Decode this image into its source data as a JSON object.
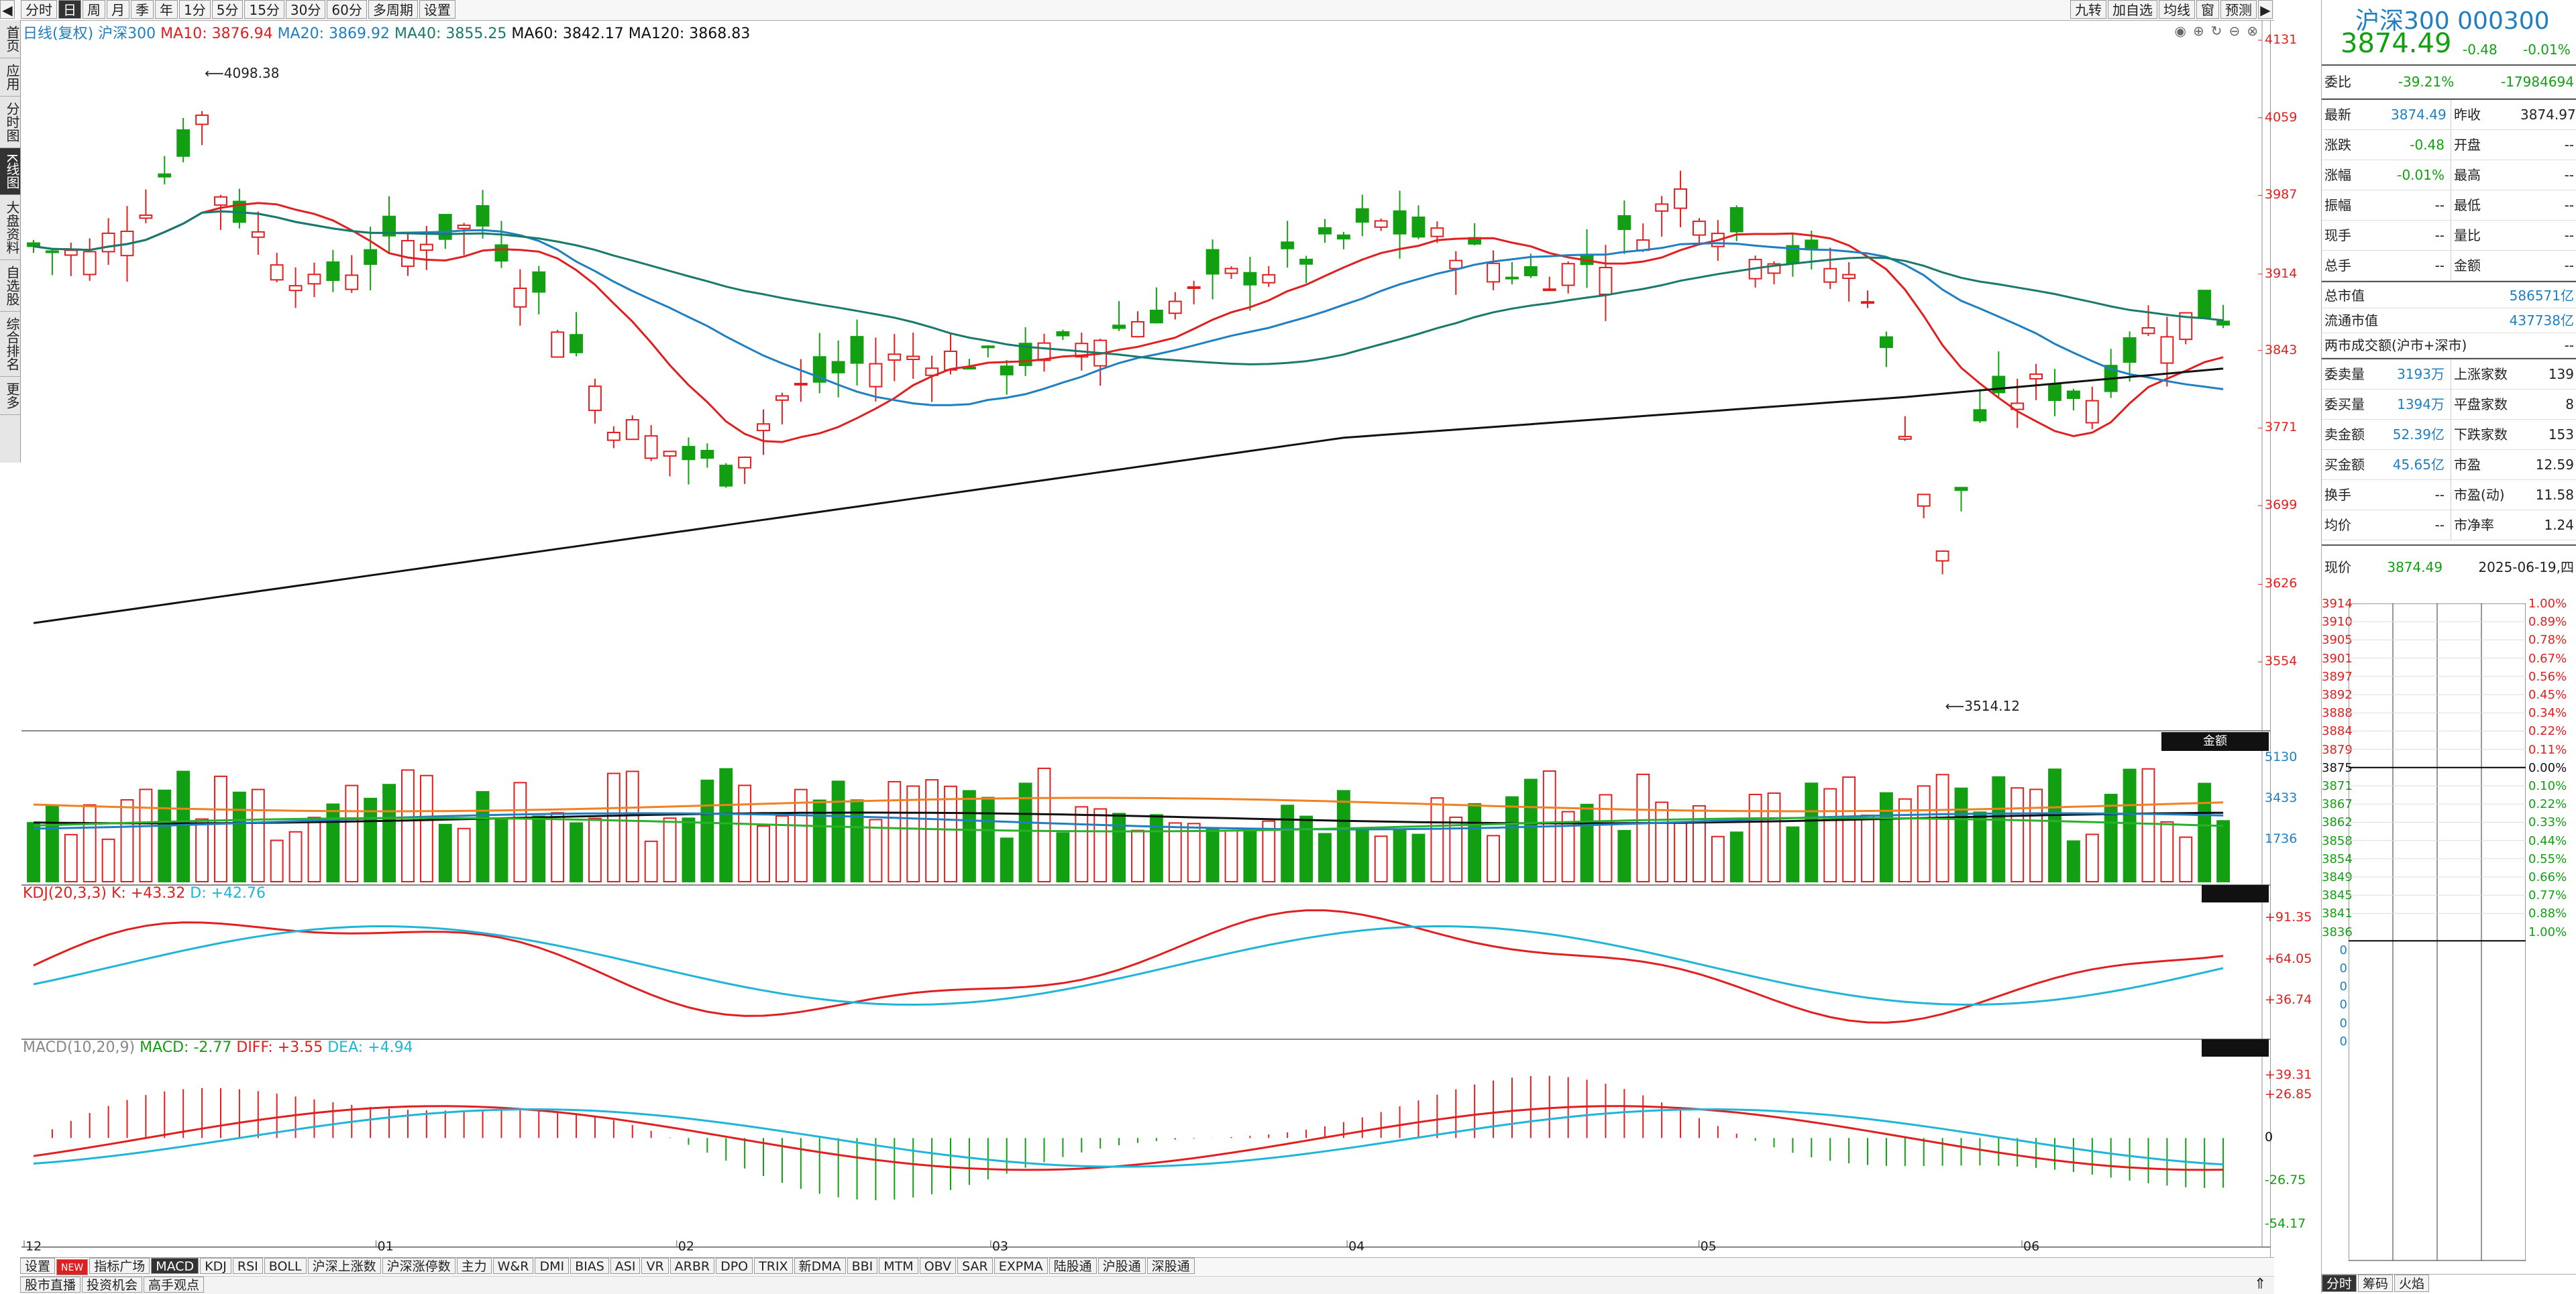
{
  "toolbar": {
    "items": [
      "分时",
      "日",
      "周",
      "月",
      "季",
      "年",
      "1分",
      "5分",
      "15分",
      "30分",
      "60分",
      "多周期",
      "设置"
    ],
    "active": "日",
    "right_items": [
      "九转",
      "加自选",
      "均线",
      "窗",
      "预测"
    ]
  },
  "left_sidebar": [
    "首页",
    "应用",
    "分时图",
    "K线图",
    "大盘资料",
    "自选股",
    "综合排名",
    "更多"
  ],
  "left_sidebar_active": "K线图",
  "ma_legend": {
    "label": "日线(复权)",
    "name": "沪深300",
    "ma10": "MA10: 3876.94",
    "ma20": "MA20: 3869.92",
    "ma40": "MA40: 3855.25",
    "ma60": "MA60: 3842.17",
    "ma120": "MA120: 3868.83"
  },
  "price_axis": [
    "4131",
    "4059",
    "3987",
    "3914",
    "3843",
    "3771",
    "3699",
    "3626",
    "3554"
  ],
  "annotations": {
    "high": "4098.38",
    "low": "3514.12"
  },
  "volume_panel": {
    "label": "金额",
    "axis": [
      "5130",
      "3433",
      "1736"
    ]
  },
  "kdj": {
    "title": "KDJ(20,3,3)",
    "k": "K: +43.32",
    "d": "D: +42.76",
    "axis": [
      "+91.35",
      "+64.05",
      "+36.74"
    ]
  },
  "macd": {
    "title": "MACD(10,20,9)",
    "macd": "MACD: -2.77",
    "diff": "DIFF: +3.55",
    "dea": "DEA: +4.94",
    "axis": [
      "+39.31",
      "+26.85",
      "0",
      "-26.75",
      "-54.17"
    ]
  },
  "x_axis": [
    "12",
    "01",
    "02",
    "03",
    "04",
    "05",
    "06"
  ],
  "indicator_tabs": [
    "设置",
    "NEW",
    "指标广场",
    "MACD",
    "KDJ",
    "RSI",
    "BOLL",
    "沪深上涨数",
    "沪深涨停数",
    "主力",
    "W&R",
    "DMI",
    "BIAS",
    "ASI",
    "VR",
    "ARBR",
    "DPO",
    "TRIX",
    "新DMA",
    "BBI",
    "MTM",
    "OBV",
    "SAR",
    "EXPMA",
    "陆股通",
    "沪股通",
    "深股通"
  ],
  "indicator_tab_active": "MACD",
  "bottom_tabs": [
    "股市直播",
    "投资机会",
    "高手观点"
  ],
  "right_panel": {
    "name": "沪深300 000300",
    "price": "3874.49",
    "change": "-0.48",
    "change_pct": "-0.01%",
    "wb_label": "委比",
    "wb_pct": "-39.21%",
    "wb_val": "-17984694",
    "rows": [
      [
        "最新",
        "3874.49",
        "昨收",
        "3874.97"
      ],
      [
        "涨跌",
        "-0.48",
        "开盘",
        "--"
      ],
      [
        "涨幅",
        "-0.01%",
        "最高",
        "--"
      ],
      [
        "振幅",
        "--",
        "最低",
        "--"
      ],
      [
        "现手",
        "--",
        "量比",
        "--"
      ],
      [
        "总手",
        "--",
        "金额",
        "--"
      ]
    ],
    "total_mv_label": "总市值",
    "total_mv": "586571亿",
    "float_mv_label": "流通市值",
    "float_mv": "437738亿",
    "market_label": "两市成交额(沪市+深市)",
    "market_val": "--",
    "rows2": [
      [
        "委卖量",
        "3193万",
        "上涨家数",
        "139"
      ],
      [
        "委买量",
        "1394万",
        "平盘家数",
        "8"
      ],
      [
        "卖金额",
        "52.39亿",
        "下跌家数",
        "153"
      ],
      [
        "买金额",
        "45.65亿",
        "市盈",
        "12.59"
      ],
      [
        "换手",
        "--",
        "市盈(动)",
        "11.58"
      ],
      [
        "均价",
        "--",
        "市净率",
        "1.24"
      ]
    ],
    "now_label": "现价",
    "now_price": "3874.49",
    "date": "2025-06-19,四",
    "mini_left": [
      "3914",
      "3910",
      "3905",
      "3901",
      "3897",
      "3892",
      "3888",
      "3884",
      "3879",
      "3875",
      "3871",
      "3867",
      "3862",
      "3858",
      "3854",
      "3849",
      "3845",
      "3841",
      "3836",
      "0",
      "0",
      "0",
      "0",
      "0",
      "0"
    ],
    "mini_right": [
      "1.00%",
      "0.89%",
      "0.78%",
      "0.67%",
      "0.56%",
      "0.45%",
      "0.34%",
      "0.22%",
      "0.11%",
      "0.00%",
      "0.10%",
      "0.22%",
      "0.33%",
      "0.44%",
      "0.55%",
      "0.66%",
      "0.77%",
      "0.88%",
      "1.00%"
    ],
    "bottom_tabs": [
      "分时",
      "筹码",
      "火焰"
    ]
  },
  "colors": {
    "up": "#e02020",
    "down": "#12a012",
    "ma10": "#e02020",
    "ma20": "#1f7fc0",
    "ma40": "#1a7a6a",
    "ma120": "#111111"
  }
}
